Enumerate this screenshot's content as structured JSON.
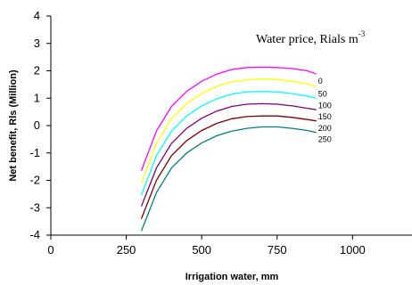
{
  "chart_data": {
    "type": "line",
    "title": "",
    "xlabel": "Irrigation water, mm",
    "ylabel": "Net benefit, Rls (Million)",
    "xlim": [
      0,
      1200
    ],
    "ylim": [
      -4,
      4
    ],
    "xticks": [
      0,
      250,
      500,
      750,
      1000
    ],
    "yticks": [
      -4,
      -3,
      -2,
      -1,
      0,
      1,
      2,
      3,
      4
    ],
    "grid": false,
    "legend": {
      "title_main": "Water price, Rials m",
      "title_exp": "-3",
      "placement": "top-right"
    },
    "series": [
      {
        "name": "0",
        "color": "#ff00ff",
        "x": [
          300,
          350,
          400,
          450,
          500,
          550,
          600,
          650,
          700,
          750,
          800,
          850,
          880
        ],
        "y": [
          -1.65,
          -0.2,
          0.7,
          1.25,
          1.62,
          1.88,
          2.05,
          2.12,
          2.13,
          2.12,
          2.08,
          2.0,
          1.88
        ]
      },
      {
        "name": "50",
        "color": "#ffff00",
        "x": [
          300,
          350,
          400,
          450,
          500,
          550,
          600,
          650,
          700,
          750,
          800,
          850,
          880
        ],
        "y": [
          -2.1,
          -0.65,
          0.25,
          0.8,
          1.17,
          1.43,
          1.6,
          1.67,
          1.7,
          1.68,
          1.62,
          1.52,
          1.42
        ]
      },
      {
        "name": "100",
        "color": "#00ffff",
        "x": [
          300,
          350,
          400,
          450,
          500,
          550,
          600,
          650,
          700,
          750,
          800,
          850,
          880
        ],
        "y": [
          -2.55,
          -1.1,
          -0.2,
          0.35,
          0.72,
          0.98,
          1.15,
          1.23,
          1.25,
          1.23,
          1.17,
          1.08,
          1.0
        ]
      },
      {
        "name": "150",
        "color": "#800080",
        "x": [
          300,
          350,
          400,
          450,
          500,
          550,
          600,
          650,
          700,
          750,
          800,
          850,
          880
        ],
        "y": [
          -2.95,
          -1.55,
          -0.65,
          -0.1,
          0.27,
          0.53,
          0.7,
          0.78,
          0.8,
          0.78,
          0.72,
          0.63,
          0.58
        ]
      },
      {
        "name": "200",
        "color": "#800000",
        "x": [
          300,
          350,
          400,
          450,
          500,
          550,
          600,
          650,
          700,
          750,
          800,
          850,
          880
        ],
        "y": [
          -3.4,
          -2.0,
          -1.1,
          -0.55,
          -0.18,
          0.08,
          0.25,
          0.33,
          0.35,
          0.35,
          0.3,
          0.22,
          0.17
        ]
      },
      {
        "name": "250",
        "color": "#008080",
        "x": [
          300,
          350,
          400,
          450,
          500,
          550,
          600,
          650,
          700,
          750,
          800,
          850,
          880
        ],
        "y": [
          -3.85,
          -2.45,
          -1.55,
          -1.0,
          -0.63,
          -0.37,
          -0.2,
          -0.1,
          -0.05,
          -0.05,
          -0.1,
          -0.18,
          -0.25
        ]
      }
    ]
  }
}
